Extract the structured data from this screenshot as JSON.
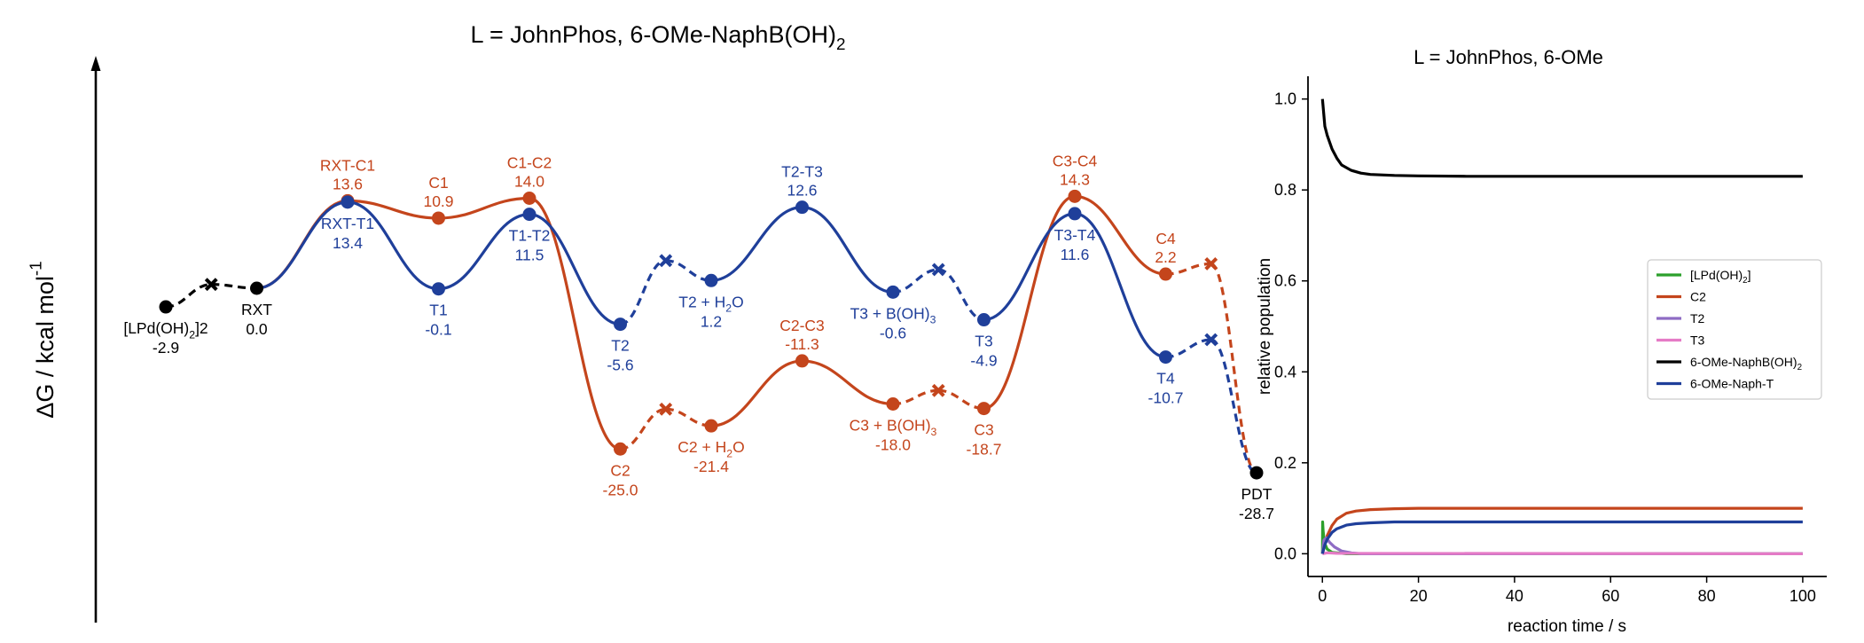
{
  "colors": {
    "orange": "#c4451c",
    "blue": "#1f3f9a",
    "black": "#000000",
    "green": "#2ca02c",
    "purple": "#8e6cc4",
    "pink": "#e57bc6"
  },
  "chart_data": [
    {
      "type": "line",
      "title": "L = JohnPhos, 6-OMe-NaphB(OH)2",
      "ylabel": "ΔG / kcal mol-1",
      "points": [
        {
          "id": "LPd2",
          "x": 0,
          "y": -2.9,
          "color": "black",
          "marker": "dot",
          "name": "[LPd(OH)2]2",
          "value": "-2.9"
        },
        {
          "id": "LPdX",
          "x": 0.5,
          "y": 0.6,
          "color": "black",
          "marker": "cross"
        },
        {
          "id": "RXT",
          "x": 1,
          "y": 0.0,
          "color": "black",
          "marker": "dot",
          "name": "RXT",
          "value": "0.0"
        },
        {
          "id": "RXTC1",
          "x": 2,
          "y": 13.6,
          "color": "orange",
          "marker": "dot",
          "name": "RXT-C1",
          "value": "13.6"
        },
        {
          "id": "C1",
          "x": 3,
          "y": 10.9,
          "color": "orange",
          "marker": "dot",
          "name": "C1",
          "value": "10.9"
        },
        {
          "id": "C1C2",
          "x": 4,
          "y": 14.0,
          "color": "orange",
          "marker": "dot",
          "name": "C1-C2",
          "value": "14.0"
        },
        {
          "id": "C2",
          "x": 5,
          "y": -25.0,
          "color": "orange",
          "marker": "dot",
          "name": "C2",
          "value": "-25.0"
        },
        {
          "id": "C2X",
          "x": 5.5,
          "y": -18.8,
          "color": "orange",
          "marker": "cross"
        },
        {
          "id": "C2H2O",
          "x": 6,
          "y": -21.4,
          "color": "orange",
          "marker": "dot",
          "name": "C2 + H2O",
          "value": "-21.4"
        },
        {
          "id": "C2C3",
          "x": 7,
          "y": -11.3,
          "color": "orange",
          "marker": "dot",
          "name": "C2-C3",
          "value": "-11.3"
        },
        {
          "id": "C3B",
          "x": 8,
          "y": -18.0,
          "color": "orange",
          "marker": "dot",
          "name": "C3 + B(OH)3",
          "value": "-18.0"
        },
        {
          "id": "C3X",
          "x": 8.5,
          "y": -15.9,
          "color": "orange",
          "marker": "cross"
        },
        {
          "id": "C3",
          "x": 9,
          "y": -18.7,
          "color": "orange",
          "marker": "dot",
          "name": "C3",
          "value": "-18.7"
        },
        {
          "id": "C3C4",
          "x": 10,
          "y": 14.3,
          "color": "orange",
          "marker": "dot",
          "name": "C3-C4",
          "value": "14.3"
        },
        {
          "id": "C4",
          "x": 11,
          "y": 2.2,
          "color": "orange",
          "marker": "dot",
          "name": "C4",
          "value": "2.2"
        },
        {
          "id": "C4X",
          "x": 11.5,
          "y": 3.8,
          "color": "orange",
          "marker": "cross"
        },
        {
          "id": "RXTT1",
          "x": 2,
          "y": 13.4,
          "color": "blue",
          "marker": "dot",
          "name": "RXT-T1",
          "value": "13.4"
        },
        {
          "id": "T1",
          "x": 3,
          "y": -0.1,
          "color": "blue",
          "marker": "dot",
          "name": "T1",
          "value": "-0.1"
        },
        {
          "id": "T1T2",
          "x": 4,
          "y": 11.5,
          "color": "blue",
          "marker": "dot",
          "name": "T1-T2",
          "value": "11.5"
        },
        {
          "id": "T2",
          "x": 5,
          "y": -5.6,
          "color": "blue",
          "marker": "dot",
          "name": "T2",
          "value": "-5.6"
        },
        {
          "id": "T2X",
          "x": 5.5,
          "y": 4.3,
          "color": "blue",
          "marker": "cross"
        },
        {
          "id": "T2H2O",
          "x": 6,
          "y": 1.2,
          "color": "blue",
          "marker": "dot",
          "name": "T2 + H2O",
          "value": "1.2"
        },
        {
          "id": "T2T3",
          "x": 7,
          "y": 12.6,
          "color": "blue",
          "marker": "dot",
          "name": "T2-T3",
          "value": "12.6"
        },
        {
          "id": "T3B",
          "x": 8,
          "y": -0.6,
          "color": "blue",
          "marker": "dot",
          "name": "T3 + B(OH)3",
          "value": "-0.6"
        },
        {
          "id": "T3X",
          "x": 8.5,
          "y": 2.9,
          "color": "blue",
          "marker": "cross"
        },
        {
          "id": "T3",
          "x": 9,
          "y": -4.9,
          "color": "blue",
          "marker": "dot",
          "name": "T3",
          "value": "-4.9"
        },
        {
          "id": "T3T4",
          "x": 10,
          "y": 11.6,
          "color": "blue",
          "marker": "dot",
          "name": "T3-T4",
          "value": "11.6"
        },
        {
          "id": "T4",
          "x": 11,
          "y": -10.7,
          "color": "blue",
          "marker": "dot",
          "name": "T4",
          "value": "-10.7"
        },
        {
          "id": "T4X",
          "x": 11.5,
          "y": -8.0,
          "color": "blue",
          "marker": "cross"
        },
        {
          "id": "PDT",
          "x": 12,
          "y": -28.7,
          "color": "black",
          "marker": "dot",
          "name": "PDT",
          "value": "-28.7"
        }
      ],
      "segments": [
        {
          "from": "LPd2",
          "to": "LPdX",
          "color": "black",
          "dashed": true
        },
        {
          "from": "LPdX",
          "to": "RXT",
          "color": "black",
          "dashed": true
        },
        {
          "from": "RXT",
          "to": "RXTC1",
          "color": "orange",
          "dashed": false
        },
        {
          "from": "RXTC1",
          "to": "C1",
          "color": "orange",
          "dashed": false
        },
        {
          "from": "C1",
          "to": "C1C2",
          "color": "orange",
          "dashed": false
        },
        {
          "from": "C1C2",
          "to": "C2",
          "color": "orange",
          "dashed": false
        },
        {
          "from": "C2",
          "to": "C2X",
          "color": "orange",
          "dashed": true
        },
        {
          "from": "C2X",
          "to": "C2H2O",
          "color": "orange",
          "dashed": true
        },
        {
          "from": "C2H2O",
          "to": "C2C3",
          "color": "orange",
          "dashed": false
        },
        {
          "from": "C2C3",
          "to": "C3B",
          "color": "orange",
          "dashed": false
        },
        {
          "from": "C3B",
          "to": "C3X",
          "color": "orange",
          "dashed": true
        },
        {
          "from": "C3X",
          "to": "C3",
          "color": "orange",
          "dashed": true
        },
        {
          "from": "C3",
          "to": "C3C4",
          "color": "orange",
          "dashed": false
        },
        {
          "from": "C3C4",
          "to": "C4",
          "color": "orange",
          "dashed": false
        },
        {
          "from": "C4",
          "to": "C4X",
          "color": "orange",
          "dashed": true
        },
        {
          "from": "C4X",
          "to": "PDT",
          "color": "orange",
          "dashed": true
        },
        {
          "from": "RXT",
          "to": "RXTT1",
          "color": "blue",
          "dashed": false
        },
        {
          "from": "RXTT1",
          "to": "T1",
          "color": "blue",
          "dashed": false
        },
        {
          "from": "T1",
          "to": "T1T2",
          "color": "blue",
          "dashed": false
        },
        {
          "from": "T1T2",
          "to": "T2",
          "color": "blue",
          "dashed": false
        },
        {
          "from": "T2",
          "to": "T2X",
          "color": "blue",
          "dashed": true
        },
        {
          "from": "T2X",
          "to": "T2H2O",
          "color": "blue",
          "dashed": true
        },
        {
          "from": "T2H2O",
          "to": "T2T3",
          "color": "blue",
          "dashed": false
        },
        {
          "from": "T2T3",
          "to": "T3B",
          "color": "blue",
          "dashed": false
        },
        {
          "from": "T3B",
          "to": "T3X",
          "color": "blue",
          "dashed": true
        },
        {
          "from": "T3X",
          "to": "T3",
          "color": "blue",
          "dashed": true
        },
        {
          "from": "T3",
          "to": "T3T4",
          "color": "blue",
          "dashed": false
        },
        {
          "from": "T3T4",
          "to": "T4",
          "color": "blue",
          "dashed": false
        },
        {
          "from": "T4",
          "to": "T4X",
          "color": "blue",
          "dashed": true
        },
        {
          "from": "T4X",
          "to": "PDT",
          "color": "blue",
          "dashed": true
        }
      ],
      "labels": [
        {
          "point": "LPd2",
          "side": "below"
        },
        {
          "point": "RXT",
          "side": "below"
        },
        {
          "point": "RXTC1",
          "side": "above"
        },
        {
          "point": "C1",
          "side": "above"
        },
        {
          "point": "C1C2",
          "side": "above"
        },
        {
          "point": "C2",
          "side": "below"
        },
        {
          "point": "C2H2O",
          "side": "below"
        },
        {
          "point": "C2C3",
          "side": "above"
        },
        {
          "point": "C3B",
          "side": "below"
        },
        {
          "point": "C3",
          "side": "below"
        },
        {
          "point": "C3C4",
          "side": "above"
        },
        {
          "point": "C4",
          "side": "above"
        },
        {
          "point": "RXTT1",
          "side": "below"
        },
        {
          "point": "T1",
          "side": "below"
        },
        {
          "point": "T1T2",
          "side": "below"
        },
        {
          "point": "T2",
          "side": "below"
        },
        {
          "point": "T2H2O",
          "side": "below"
        },
        {
          "point": "T2T3",
          "side": "above"
        },
        {
          "point": "T3B",
          "side": "below"
        },
        {
          "point": "T3",
          "side": "below"
        },
        {
          "point": "T3T4",
          "side": "below"
        },
        {
          "point": "T4",
          "side": "below"
        },
        {
          "point": "PDT",
          "side": "below"
        }
      ]
    },
    {
      "type": "line",
      "title": "L = JohnPhos, 6-OMe",
      "xlabel": "reaction time / s",
      "ylabel": "relative population",
      "xlim": [
        -3,
        105
      ],
      "ylim": [
        -0.05,
        1.05
      ],
      "xticks": [
        0,
        20,
        40,
        60,
        80,
        100
      ],
      "yticks": [
        0.0,
        0.2,
        0.4,
        0.6,
        0.8,
        1.0
      ],
      "legend_position": "center-right",
      "series": [
        {
          "name": "[LPd(OH)2]",
          "color": "green",
          "x": [
            0,
            0.05,
            0.15,
            0.3,
            0.6,
            1,
            2,
            5,
            100
          ],
          "y": [
            0,
            0.07,
            0.05,
            0.035,
            0.02,
            0.01,
            0.003,
            0,
            0
          ]
        },
        {
          "name": "C2",
          "color": "orange",
          "x": [
            0,
            1,
            2,
            3,
            5,
            7,
            10,
            15,
            20,
            30,
            100
          ],
          "y": [
            0,
            0.04,
            0.062,
            0.076,
            0.089,
            0.094,
            0.097,
            0.099,
            0.1,
            0.1,
            0.1
          ]
        },
        {
          "name": "T2",
          "color": "purple",
          "x": [
            0,
            0.3,
            0.8,
            1.5,
            2.5,
            4,
            6,
            8,
            100
          ],
          "y": [
            0,
            0.03,
            0.035,
            0.025,
            0.015,
            0.006,
            0.002,
            0,
            0
          ]
        },
        {
          "name": "T3",
          "color": "pink",
          "x": [
            0,
            1,
            3,
            100
          ],
          "y": [
            0,
            0.002,
            0.001,
            0
          ]
        },
        {
          "name": "6-OMe-NaphB(OH)2",
          "color": "black",
          "x": [
            0,
            0.5,
            1,
            2,
            3,
            4,
            6,
            8,
            10,
            15,
            20,
            30,
            50,
            100
          ],
          "y": [
            1.0,
            0.94,
            0.92,
            0.89,
            0.87,
            0.855,
            0.843,
            0.837,
            0.834,
            0.832,
            0.831,
            0.83,
            0.83,
            0.83
          ]
        },
        {
          "name": "6-OMe-Naph-T",
          "color": "blue",
          "x": [
            0,
            0.5,
            1,
            2,
            3,
            5,
            7,
            10,
            15,
            20,
            30,
            100
          ],
          "y": [
            0,
            0.02,
            0.032,
            0.047,
            0.055,
            0.063,
            0.066,
            0.068,
            0.07,
            0.07,
            0.07,
            0.07
          ]
        }
      ]
    }
  ]
}
